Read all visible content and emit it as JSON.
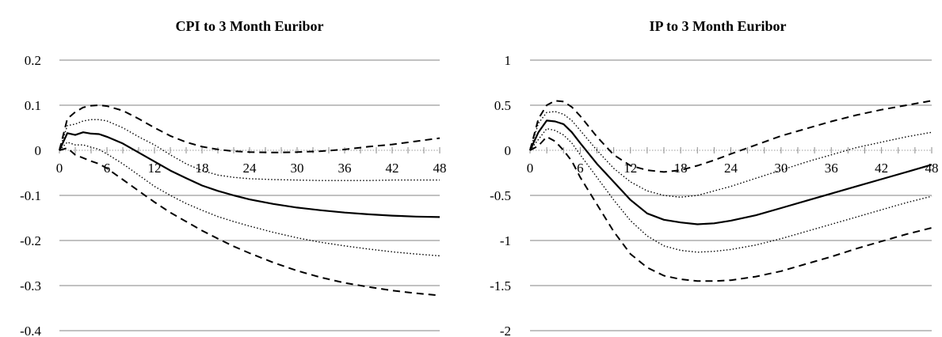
{
  "chart_data": [
    {
      "type": "line",
      "title": "CPI to 3 Month Euribor",
      "xlabel": "",
      "ylabel": "",
      "x_ticks": [
        "0",
        "6",
        "12",
        "18",
        "24",
        "30",
        "36",
        "42",
        "48"
      ],
      "y_ticks": [
        "0.2",
        "0.1",
        "0",
        "-0.1",
        "-0.2",
        "-0.3",
        "-0.4"
      ],
      "xlim": [
        0,
        48
      ],
      "ylim": [
        -0.4,
        0.2
      ],
      "grid": "horizontal",
      "series": [
        {
          "style": "solid",
          "x": [
            0,
            1,
            2,
            3,
            4,
            5,
            6,
            8,
            10,
            12,
            14,
            16,
            18,
            20,
            22,
            24,
            27,
            30,
            33,
            36,
            39,
            42,
            45,
            48
          ],
          "y": [
            0,
            0.038,
            0.034,
            0.04,
            0.037,
            0.036,
            0.03,
            0.015,
            -0.005,
            -0.025,
            -0.045,
            -0.062,
            -0.078,
            -0.09,
            -0.1,
            -0.109,
            -0.119,
            -0.127,
            -0.133,
            -0.138,
            -0.142,
            -0.145,
            -0.147,
            -0.148
          ]
        },
        {
          "style": "dotted",
          "x": [
            0,
            1,
            2,
            3,
            4,
            5,
            6,
            8,
            10,
            12,
            14,
            16,
            18,
            20,
            22,
            24,
            27,
            30,
            33,
            36,
            39,
            42,
            45,
            48
          ],
          "y": [
            0,
            0.055,
            0.058,
            0.065,
            0.068,
            0.068,
            0.065,
            0.05,
            0.03,
            0.012,
            -0.01,
            -0.03,
            -0.045,
            -0.055,
            -0.06,
            -0.063,
            -0.065,
            -0.066,
            -0.067,
            -0.067,
            -0.067,
            -0.066,
            -0.066,
            -0.066
          ]
        },
        {
          "style": "dotted",
          "x": [
            0,
            1,
            2,
            3,
            4,
            5,
            6,
            8,
            10,
            12,
            14,
            16,
            18,
            20,
            22,
            24,
            27,
            30,
            33,
            36,
            39,
            42,
            45,
            48
          ],
          "y": [
            0,
            0.018,
            0.012,
            0.012,
            0.007,
            0.002,
            -0.008,
            -0.03,
            -0.055,
            -0.08,
            -0.1,
            -0.118,
            -0.133,
            -0.147,
            -0.158,
            -0.168,
            -0.182,
            -0.194,
            -0.204,
            -0.212,
            -0.219,
            -0.225,
            -0.23,
            -0.234
          ]
        },
        {
          "style": "dashed",
          "x": [
            0,
            1,
            2,
            3,
            4,
            5,
            6,
            8,
            10,
            12,
            14,
            16,
            18,
            20,
            22,
            24,
            27,
            30,
            33,
            36,
            39,
            42,
            45,
            48
          ],
          "y": [
            0,
            0.07,
            0.085,
            0.095,
            0.099,
            0.1,
            0.098,
            0.088,
            0.07,
            0.05,
            0.032,
            0.018,
            0.008,
            0.002,
            -0.002,
            -0.004,
            -0.005,
            -0.004,
            -0.002,
            0.002,
            0.008,
            0.013,
            0.02,
            0.027
          ]
        },
        {
          "style": "dashed",
          "x": [
            0,
            1,
            2,
            3,
            4,
            5,
            6,
            8,
            10,
            12,
            14,
            16,
            18,
            20,
            22,
            24,
            27,
            30,
            33,
            36,
            39,
            42,
            45,
            48
          ],
          "y": [
            0,
            0.005,
            -0.01,
            -0.017,
            -0.024,
            -0.03,
            -0.04,
            -0.065,
            -0.09,
            -0.115,
            -0.138,
            -0.158,
            -0.178,
            -0.196,
            -0.213,
            -0.228,
            -0.249,
            -0.267,
            -0.282,
            -0.294,
            -0.303,
            -0.311,
            -0.317,
            -0.322
          ]
        }
      ]
    },
    {
      "type": "line",
      "title": "IP to 3 Month Euribor",
      "xlabel": "",
      "ylabel": "",
      "x_ticks": [
        "0",
        "6",
        "12",
        "18",
        "24",
        "30",
        "36",
        "42",
        "48"
      ],
      "y_ticks": [
        "1",
        "0.5",
        "0",
        "-0.5",
        "-1",
        "-1.5",
        "-2"
      ],
      "xlim": [
        0,
        48
      ],
      "ylim": [
        -2,
        1
      ],
      "grid": "horizontal",
      "series": [
        {
          "style": "solid",
          "x": [
            0,
            1,
            2,
            3,
            4,
            5,
            6,
            8,
            10,
            12,
            14,
            16,
            18,
            20,
            22,
            24,
            27,
            30,
            33,
            36,
            39,
            42,
            45,
            48
          ],
          "y": [
            0,
            0.2,
            0.33,
            0.32,
            0.29,
            0.2,
            0.08,
            -0.15,
            -0.35,
            -0.55,
            -0.7,
            -0.77,
            -0.8,
            -0.82,
            -0.81,
            -0.78,
            -0.72,
            -0.64,
            -0.56,
            -0.48,
            -0.4,
            -0.32,
            -0.24,
            -0.16
          ]
        },
        {
          "style": "dotted",
          "x": [
            0,
            1,
            2,
            3,
            4,
            5,
            6,
            8,
            10,
            12,
            14,
            16,
            18,
            20,
            22,
            24,
            27,
            30,
            33,
            36,
            39,
            42,
            45,
            48
          ],
          "y": [
            0,
            0.3,
            0.42,
            0.43,
            0.4,
            0.33,
            0.22,
            0,
            -0.2,
            -0.35,
            -0.45,
            -0.5,
            -0.52,
            -0.5,
            -0.45,
            -0.4,
            -0.31,
            -0.22,
            -0.13,
            -0.05,
            0.03,
            0.09,
            0.15,
            0.2
          ]
        },
        {
          "style": "dotted",
          "x": [
            0,
            1,
            2,
            3,
            4,
            5,
            6,
            8,
            10,
            12,
            14,
            16,
            18,
            20,
            22,
            24,
            27,
            30,
            33,
            36,
            39,
            42,
            45,
            48
          ],
          "y": [
            0,
            0.12,
            0.24,
            0.22,
            0.17,
            0.08,
            -0.05,
            -0.3,
            -0.55,
            -0.78,
            -0.95,
            -1.06,
            -1.11,
            -1.13,
            -1.12,
            -1.1,
            -1.05,
            -0.98,
            -0.9,
            -0.82,
            -0.74,
            -0.66,
            -0.58,
            -0.51
          ]
        },
        {
          "style": "dashed",
          "x": [
            0,
            1,
            2,
            3,
            4,
            5,
            6,
            8,
            10,
            12,
            14,
            16,
            18,
            20,
            22,
            24,
            27,
            30,
            33,
            36,
            39,
            42,
            45,
            48
          ],
          "y": [
            0,
            0.35,
            0.5,
            0.55,
            0.54,
            0.48,
            0.38,
            0.15,
            -0.05,
            -0.17,
            -0.22,
            -0.24,
            -0.22,
            -0.17,
            -0.11,
            -0.04,
            0.06,
            0.16,
            0.24,
            0.32,
            0.39,
            0.45,
            0.5,
            0.55
          ]
        },
        {
          "style": "dashed",
          "x": [
            0,
            1,
            2,
            3,
            4,
            5,
            6,
            8,
            10,
            12,
            14,
            16,
            18,
            20,
            22,
            24,
            27,
            30,
            33,
            36,
            39,
            42,
            45,
            48
          ],
          "y": [
            0,
            0.05,
            0.15,
            0.1,
            0,
            -0.12,
            -0.3,
            -0.6,
            -0.9,
            -1.15,
            -1.3,
            -1.39,
            -1.43,
            -1.45,
            -1.45,
            -1.44,
            -1.4,
            -1.34,
            -1.26,
            -1.18,
            -1.09,
            -1.01,
            -0.93,
            -0.86
          ]
        }
      ]
    }
  ]
}
